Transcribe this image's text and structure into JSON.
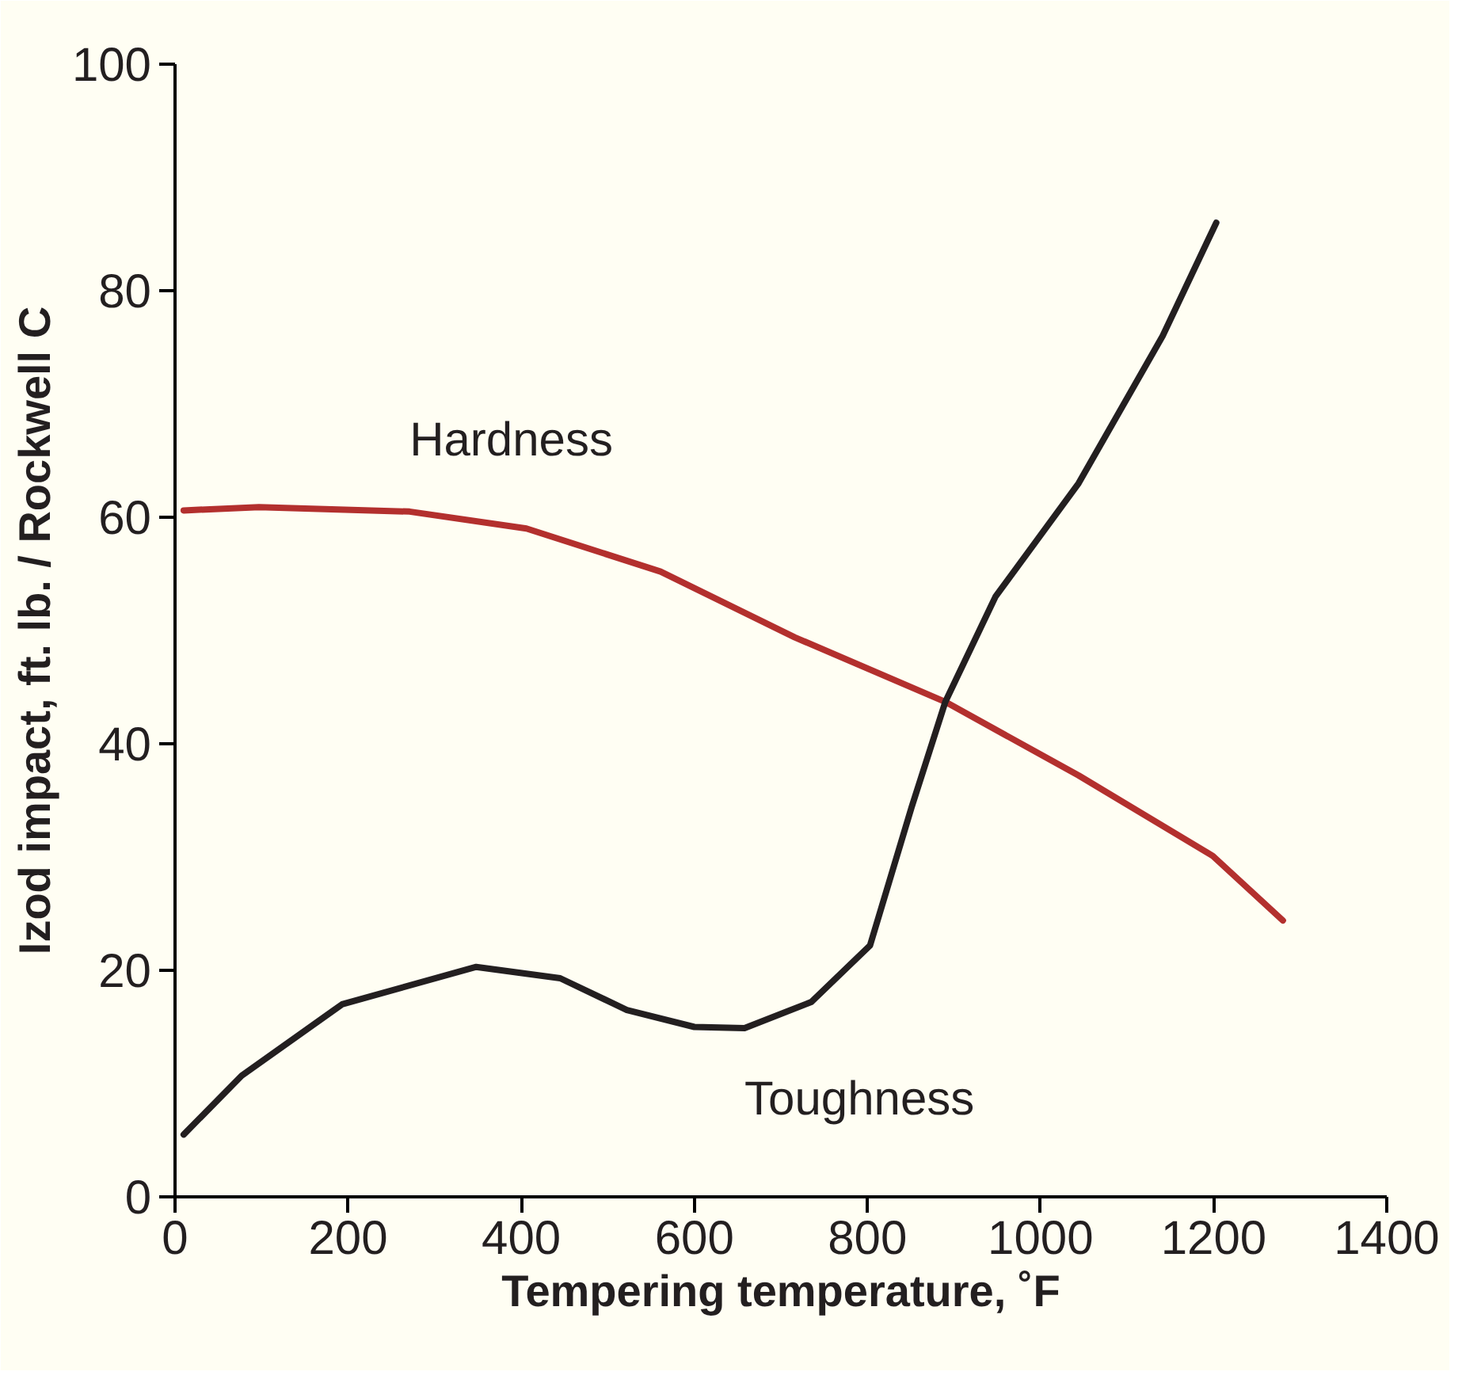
{
  "chart_data": {
    "type": "line",
    "xlabel": "Tempering temperature, ˚F",
    "ylabel": "Izod impact, ft. lb. / Rockwell C",
    "xlim": [
      0,
      1400
    ],
    "ylim": [
      0,
      100
    ],
    "xticks": [
      0,
      200,
      400,
      600,
      800,
      1000,
      1200,
      1400
    ],
    "yticks": [
      0,
      20,
      40,
      60,
      80,
      100
    ],
    "grid": false,
    "marker": "none",
    "line_style": "solid",
    "series": [
      {
        "name": "Hardness",
        "color": "#b3302e",
        "x": [
          10,
          97,
          271,
          406,
          561,
          716,
          890,
          1044,
          1199,
          1280
        ],
        "values": [
          60.6,
          60.9,
          60.5,
          59,
          55.2,
          49.4,
          43.7,
          37.2,
          30.1,
          24.4
        ]
      },
      {
        "name": "Toughness",
        "color": "#231f20",
        "x": [
          10,
          77,
          193,
          348,
          445,
          522,
          600,
          658,
          735,
          803,
          851,
          890,
          948,
          1044,
          1141,
          1203
        ],
        "values": [
          5.5,
          10.7,
          17,
          20.3,
          19.3,
          16.5,
          15,
          14.9,
          17.2,
          22.2,
          34.4,
          43.7,
          53,
          63,
          76,
          86
        ]
      }
    ]
  }
}
